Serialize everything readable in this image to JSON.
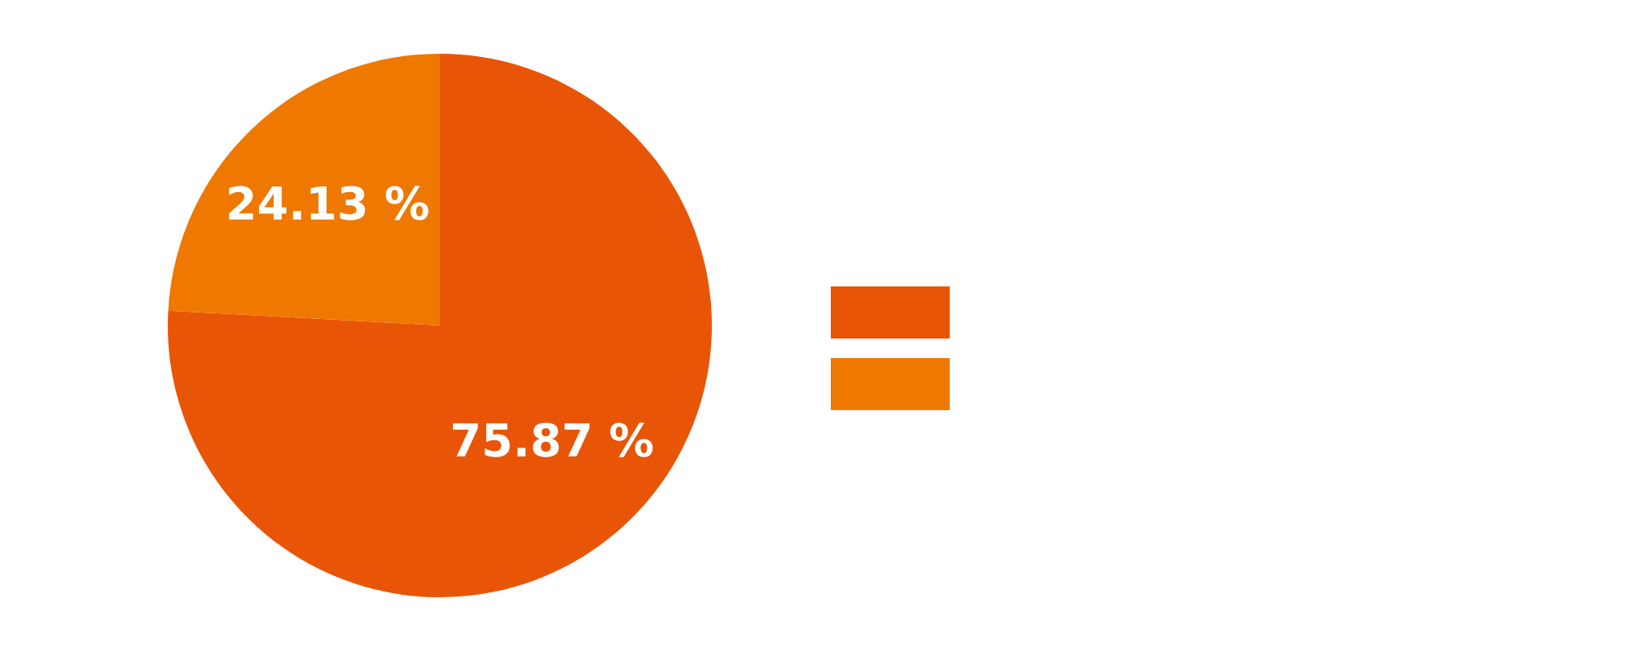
{
  "chart_data": {
    "type": "pie",
    "categories": [
      null,
      null
    ],
    "values": [
      75.87,
      24.13
    ],
    "colors": [
      "#e95506",
      "#ee7800"
    ],
    "value_labels": [
      "75.87 %",
      "24.13 %"
    ]
  }
}
